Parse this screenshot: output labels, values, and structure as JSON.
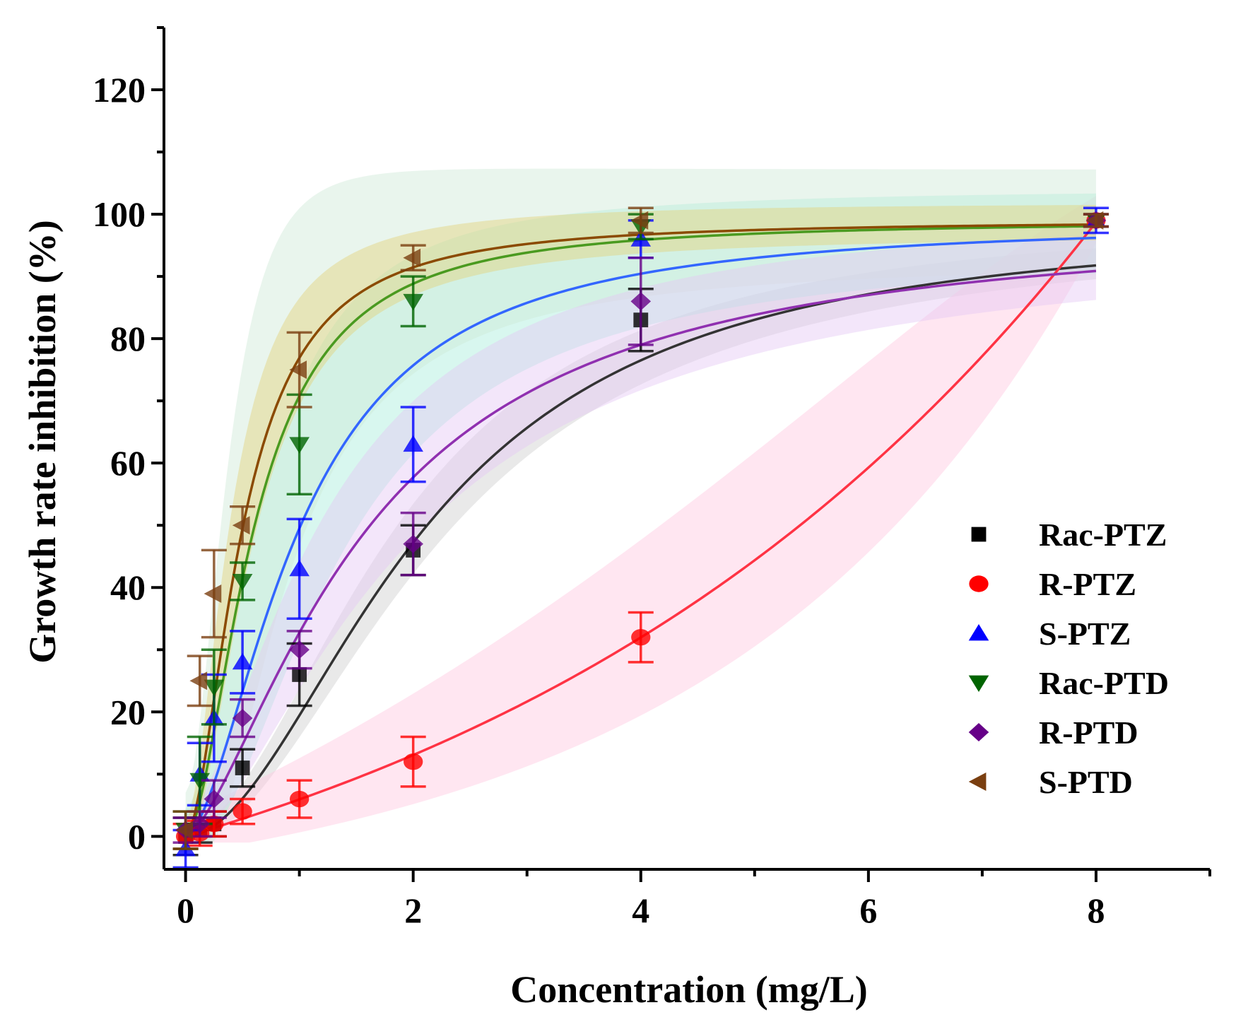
{
  "chart_data": {
    "type": "scatter",
    "title": "",
    "xlabel": "Concentration (mg/L)",
    "ylabel": "Growth rate inhibition (%)",
    "xlim": [
      -0.19,
      9
    ],
    "ylim": [
      -5.3,
      130
    ],
    "xticks": [
      0,
      2,
      4,
      6,
      8
    ],
    "yticks": [
      0,
      20,
      40,
      60,
      80,
      100,
      120
    ],
    "xtick_labels": [
      "0",
      "2",
      "4",
      "6",
      "8"
    ],
    "ytick_labels": [
      "0",
      "20",
      "40",
      "60",
      "80",
      "100",
      "120"
    ],
    "grid": false,
    "legend_position": "bottom-right",
    "x": [
      0,
      0.125,
      0.25,
      0.5,
      1,
      2,
      4,
      8
    ],
    "series": [
      {
        "name": "Rac-PTZ",
        "marker": "square",
        "color": "#000000",
        "line_color": "#333333",
        "band_color": "#cfcfcf",
        "band_halfwidth": 5,
        "values": [
          0,
          1,
          2,
          11,
          26,
          46,
          83,
          99
        ],
        "errors": [
          3,
          2,
          2,
          3,
          5,
          4,
          5,
          1
        ],
        "fit": {
          "model": "hill",
          "top": 99,
          "k": 2.1,
          "n": 1.9
        }
      },
      {
        "name": "R-PTZ",
        "marker": "circle",
        "color": "#ff0000",
        "line_color": "#ff3344",
        "band_color": "#ffc8e0",
        "band_halfwidth": 14,
        "values": [
          0,
          0.5,
          2,
          4,
          6,
          12,
          32,
          99
        ],
        "errors": [
          2,
          2,
          2,
          2,
          3,
          4,
          4,
          1
        ],
        "fit": {
          "model": "exp",
          "a": 29.4,
          "b": 0.184
        }
      },
      {
        "name": "S-PTZ",
        "marker": "triangle-up",
        "color": "#0000ff",
        "line_color": "#3366ff",
        "band_color": "#a8eedc",
        "band_halfwidth": 18,
        "values": [
          -2,
          10,
          19,
          28,
          43,
          63,
          96,
          99
        ],
        "errors": [
          3,
          5,
          7,
          5,
          8,
          6,
          3,
          2
        ],
        "fit": {
          "model": "hill",
          "top": 99,
          "k": 1.0,
          "n": 1.7
        }
      },
      {
        "name": "Rac-PTD",
        "marker": "triangle-down",
        "color": "#006400",
        "line_color": "#4a9a20",
        "band_color": "#cfe9d6",
        "band_halfwidth": 28,
        "values": [
          1,
          9,
          24,
          41,
          63,
          86,
          98,
          99
        ],
        "errors": [
          3,
          7,
          6,
          3,
          8,
          4,
          2,
          1
        ],
        "fit": {
          "model": "hill",
          "top": 99,
          "k": 0.6,
          "n": 1.8
        }
      },
      {
        "name": "R-PTD",
        "marker": "diamond",
        "color": "#660088",
        "line_color": "#9030b0",
        "band_color": "#e4c8f4",
        "band_halfwidth": 10,
        "values": [
          1,
          2,
          6,
          19,
          30,
          47,
          86,
          99
        ],
        "errors": [
          2,
          2,
          3,
          3,
          3,
          5,
          7,
          1
        ],
        "fit": {
          "model": "hill",
          "top": 99,
          "k": 1.6,
          "n": 1.5
        }
      },
      {
        "name": "S-PTD",
        "marker": "triangle-left",
        "color": "#7a3f10",
        "line_color": "#8b4a00",
        "band_color": "#e3d27a",
        "band_halfwidth": 10,
        "values": [
          1,
          25,
          39,
          50,
          75,
          93,
          99,
          99
        ],
        "errors": [
          3,
          4,
          7,
          3,
          6,
          2,
          2,
          1
        ],
        "fit": {
          "model": "hill",
          "top": 99,
          "k": 0.5,
          "n": 1.8
        }
      }
    ]
  }
}
